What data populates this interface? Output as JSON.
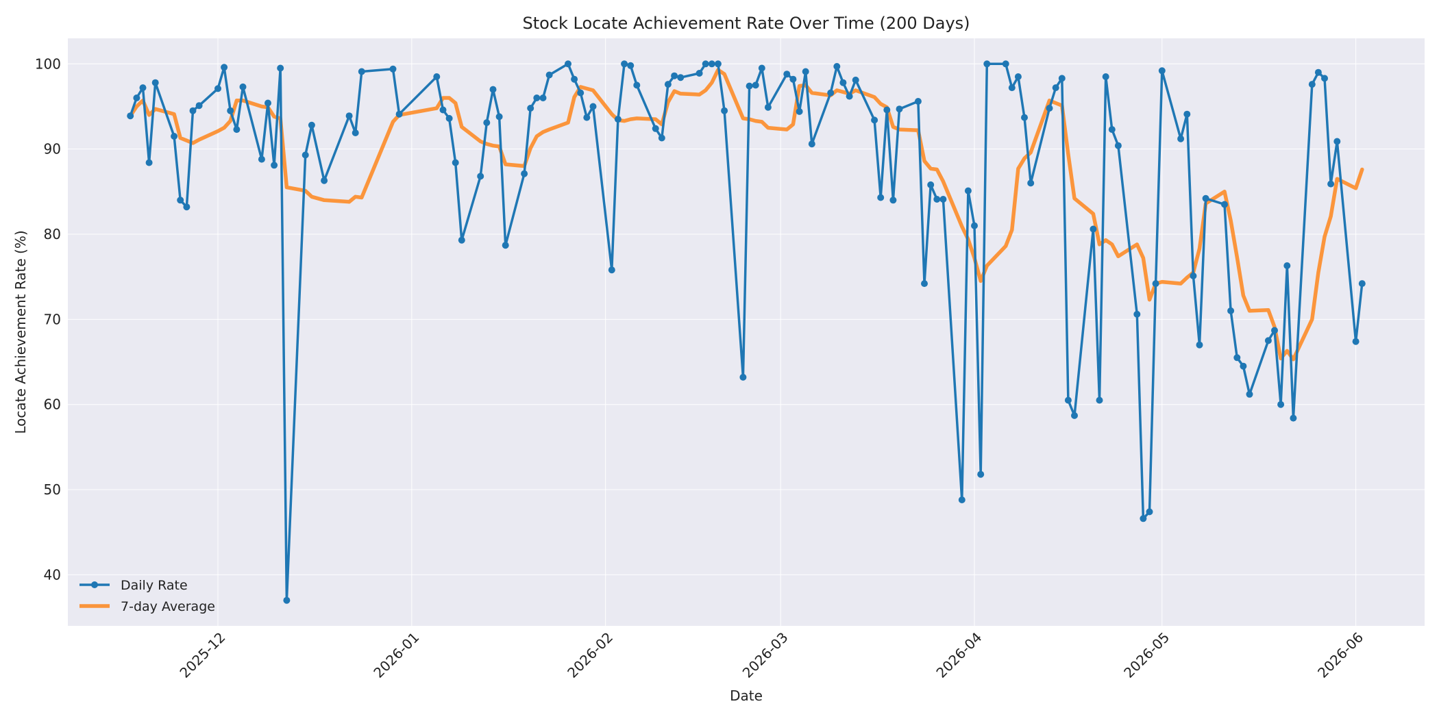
{
  "chart_data": {
    "type": "line",
    "title": "Stock Locate Achievement Rate Over Time (200 Days)",
    "xlabel": "Date",
    "ylabel": "Locate Achievement Rate (%)",
    "x_ticks": [
      "2025-12",
      "2026-01",
      "2026-02",
      "2026-03",
      "2026-04",
      "2026-05",
      "2026-06"
    ],
    "x_tick_dates": [
      "2025-12-01",
      "2026-01-01",
      "2026-02-01",
      "2026-03-01",
      "2026-04-01",
      "2026-05-01",
      "2026-06-01"
    ],
    "y_ticks": [
      40,
      50,
      60,
      70,
      80,
      90,
      100
    ],
    "xlim": [
      "2025-11-07",
      "2026-06-12"
    ],
    "ylim": [
      34,
      103
    ],
    "grid": true,
    "legend_position": "bottom-left",
    "series": [
      {
        "name": "Daily Rate",
        "color": "#1f77b4",
        "marker": "circle",
        "points": [
          [
            "2025-11-17",
            93.9
          ],
          [
            "2025-11-18",
            96.0
          ],
          [
            "2025-11-19",
            97.2
          ],
          [
            "2025-11-20",
            88.4
          ],
          [
            "2025-11-21",
            97.8
          ],
          [
            "2025-11-24",
            91.5
          ],
          [
            "2025-11-25",
            84.0
          ],
          [
            "2025-11-26",
            83.2
          ],
          [
            "2025-11-27",
            94.5
          ],
          [
            "2025-11-28",
            95.1
          ],
          [
            "2025-12-01",
            97.1
          ],
          [
            "2025-12-02",
            99.6
          ],
          [
            "2025-12-03",
            94.5
          ],
          [
            "2025-12-04",
            92.3
          ],
          [
            "2025-12-05",
            97.3
          ],
          [
            "2025-12-08",
            88.8
          ],
          [
            "2025-12-09",
            95.4
          ],
          [
            "2025-12-10",
            88.1
          ],
          [
            "2025-12-11",
            99.5
          ],
          [
            "2025-12-12",
            37.0
          ],
          [
            "2025-12-15",
            89.3
          ],
          [
            "2025-12-16",
            92.8
          ],
          [
            "2025-12-18",
            86.3
          ],
          [
            "2025-12-22",
            93.9
          ],
          [
            "2025-12-23",
            91.9
          ],
          [
            "2025-12-24",
            99.1
          ],
          [
            "2025-12-29",
            99.4
          ],
          [
            "2025-12-30",
            94.1
          ],
          [
            "2026-01-05",
            98.5
          ],
          [
            "2026-01-06",
            94.6
          ],
          [
            "2026-01-07",
            93.6
          ],
          [
            "2026-01-08",
            88.4
          ],
          [
            "2026-01-09",
            79.3
          ],
          [
            "2026-01-12",
            86.8
          ],
          [
            "2026-01-13",
            93.1
          ],
          [
            "2026-01-14",
            97.0
          ],
          [
            "2026-01-15",
            93.8
          ],
          [
            "2026-01-16",
            78.7
          ],
          [
            "2026-01-19",
            87.1
          ],
          [
            "2026-01-20",
            94.8
          ],
          [
            "2026-01-21",
            96.0
          ],
          [
            "2026-01-22",
            96.0
          ],
          [
            "2026-01-23",
            98.7
          ],
          [
            "2026-01-26",
            100.0
          ],
          [
            "2026-01-27",
            98.2
          ],
          [
            "2026-01-28",
            96.6
          ],
          [
            "2026-01-29",
            93.7
          ],
          [
            "2026-01-30",
            95.0
          ],
          [
            "2026-02-02",
            75.8
          ],
          [
            "2026-02-03",
            93.5
          ],
          [
            "2026-02-04",
            100.0
          ],
          [
            "2026-02-05",
            99.8
          ],
          [
            "2026-02-06",
            97.5
          ],
          [
            "2026-02-09",
            92.4
          ],
          [
            "2026-02-10",
            91.3
          ],
          [
            "2026-02-11",
            97.6
          ],
          [
            "2026-02-12",
            98.6
          ],
          [
            "2026-02-13",
            98.4
          ],
          [
            "2026-02-16",
            98.9
          ],
          [
            "2026-02-17",
            100.0
          ],
          [
            "2026-02-18",
            100.0
          ],
          [
            "2026-02-19",
            100.0
          ],
          [
            "2026-02-20",
            94.5
          ],
          [
            "2026-02-23",
            63.2
          ],
          [
            "2026-02-24",
            97.4
          ],
          [
            "2026-02-25",
            97.5
          ],
          [
            "2026-02-26",
            99.5
          ],
          [
            "2026-02-27",
            94.9
          ],
          [
            "2026-03-02",
            98.8
          ],
          [
            "2026-03-03",
            98.2
          ],
          [
            "2026-03-04",
            94.4
          ],
          [
            "2026-03-05",
            99.1
          ],
          [
            "2026-03-06",
            90.6
          ],
          [
            "2026-03-09",
            96.6
          ],
          [
            "2026-03-10",
            99.7
          ],
          [
            "2026-03-11",
            97.8
          ],
          [
            "2026-03-12",
            96.2
          ],
          [
            "2026-03-13",
            98.1
          ],
          [
            "2026-03-16",
            93.4
          ],
          [
            "2026-03-17",
            84.3
          ],
          [
            "2026-03-18",
            94.6
          ],
          [
            "2026-03-19",
            84.0
          ],
          [
            "2026-03-20",
            94.7
          ],
          [
            "2026-03-23",
            95.6
          ],
          [
            "2026-03-24",
            74.2
          ],
          [
            "2026-03-25",
            85.8
          ],
          [
            "2026-03-26",
            84.1
          ],
          [
            "2026-03-27",
            84.1
          ],
          [
            "2026-03-30",
            48.8
          ],
          [
            "2026-03-31",
            85.1
          ],
          [
            "2026-04-01",
            81.0
          ],
          [
            "2026-04-02",
            51.8
          ],
          [
            "2026-04-03",
            100.0
          ],
          [
            "2026-04-06",
            100.0
          ],
          [
            "2026-04-07",
            97.2
          ],
          [
            "2026-04-08",
            98.5
          ],
          [
            "2026-04-09",
            93.7
          ],
          [
            "2026-04-10",
            86.0
          ],
          [
            "2026-04-13",
            94.8
          ],
          [
            "2026-04-14",
            97.2
          ],
          [
            "2026-04-15",
            98.3
          ],
          [
            "2026-04-16",
            60.5
          ],
          [
            "2026-04-17",
            58.7
          ],
          [
            "2026-04-20",
            80.6
          ],
          [
            "2026-04-21",
            60.5
          ],
          [
            "2026-04-22",
            98.5
          ],
          [
            "2026-04-23",
            92.3
          ],
          [
            "2026-04-24",
            90.4
          ],
          [
            "2026-04-27",
            70.6
          ],
          [
            "2026-04-28",
            46.6
          ],
          [
            "2026-04-29",
            47.4
          ],
          [
            "2026-04-30",
            74.2
          ],
          [
            "2026-05-01",
            99.2
          ],
          [
            "2026-05-04",
            91.2
          ],
          [
            "2026-05-05",
            94.1
          ],
          [
            "2026-05-06",
            75.1
          ],
          [
            "2026-05-07",
            67.0
          ],
          [
            "2026-05-08",
            84.2
          ],
          [
            "2026-05-11",
            83.5
          ],
          [
            "2026-05-12",
            71.0
          ],
          [
            "2026-05-13",
            65.5
          ],
          [
            "2026-05-14",
            64.5
          ],
          [
            "2026-05-15",
            61.2
          ],
          [
            "2026-05-18",
            67.5
          ],
          [
            "2026-05-19",
            68.7
          ],
          [
            "2026-05-20",
            60.0
          ],
          [
            "2026-05-21",
            76.3
          ],
          [
            "2026-05-22",
            58.4
          ],
          [
            "2026-05-25",
            97.6
          ],
          [
            "2026-05-26",
            99.0
          ],
          [
            "2026-05-27",
            98.3
          ],
          [
            "2026-05-28",
            85.9
          ],
          [
            "2026-05-29",
            90.9
          ],
          [
            "2026-06-01",
            67.4
          ],
          [
            "2026-06-02",
            74.2
          ]
        ]
      },
      {
        "name": "7-day Average",
        "color": "#ff7f0e",
        "points": [
          [
            "2025-11-17",
            93.9
          ],
          [
            "2025-11-18",
            95.0
          ],
          [
            "2025-11-19",
            95.7
          ],
          [
            "2025-11-20",
            94.0
          ],
          [
            "2025-11-21",
            94.7
          ],
          [
            "2025-11-24",
            94.1
          ],
          [
            "2025-11-25",
            91.3
          ],
          [
            "2025-11-26",
            91.0
          ],
          [
            "2025-11-27",
            90.7
          ],
          [
            "2025-11-28",
            91.1
          ],
          [
            "2025-12-01",
            92.1
          ],
          [
            "2025-12-02",
            92.5
          ],
          [
            "2025-12-03",
            93.3
          ],
          [
            "2025-12-04",
            95.7
          ],
          [
            "2025-12-05",
            95.7
          ],
          [
            "2025-12-08",
            95.0
          ],
          [
            "2025-12-09",
            94.9
          ],
          [
            "2025-12-10",
            93.8
          ],
          [
            "2025-12-11",
            93.6
          ],
          [
            "2025-12-12",
            85.5
          ],
          [
            "2025-12-15",
            85.1
          ],
          [
            "2025-12-16",
            84.4
          ],
          [
            "2025-12-18",
            84.0
          ],
          [
            "2025-12-22",
            83.8
          ],
          [
            "2025-12-23",
            84.4
          ],
          [
            "2025-12-24",
            84.3
          ],
          [
            "2025-12-29",
            93.2
          ],
          [
            "2025-12-30",
            94.0
          ],
          [
            "2026-01-05",
            94.8
          ],
          [
            "2026-01-06",
            96.0
          ],
          [
            "2026-01-07",
            96.0
          ],
          [
            "2026-01-08",
            95.4
          ],
          [
            "2026-01-09",
            92.6
          ],
          [
            "2026-01-12",
            90.9
          ],
          [
            "2026-01-13",
            90.6
          ],
          [
            "2026-01-14",
            90.4
          ],
          [
            "2026-01-15",
            90.3
          ],
          [
            "2026-01-16",
            88.2
          ],
          [
            "2026-01-19",
            88.0
          ],
          [
            "2026-01-20",
            90.1
          ],
          [
            "2026-01-21",
            91.5
          ],
          [
            "2026-01-22",
            92.0
          ],
          [
            "2026-01-23",
            92.3
          ],
          [
            "2026-01-26",
            93.1
          ],
          [
            "2026-01-27",
            96.1
          ],
          [
            "2026-01-28",
            97.3
          ],
          [
            "2026-01-29",
            97.1
          ],
          [
            "2026-01-30",
            96.9
          ],
          [
            "2026-02-02",
            94.1
          ],
          [
            "2026-02-03",
            93.4
          ],
          [
            "2026-02-04",
            93.3
          ],
          [
            "2026-02-05",
            93.5
          ],
          [
            "2026-02-06",
            93.6
          ],
          [
            "2026-02-09",
            93.5
          ],
          [
            "2026-02-10",
            92.9
          ],
          [
            "2026-02-11",
            95.5
          ],
          [
            "2026-02-12",
            96.8
          ],
          [
            "2026-02-13",
            96.5
          ],
          [
            "2026-02-16",
            96.4
          ],
          [
            "2026-02-17",
            96.9
          ],
          [
            "2026-02-18",
            97.8
          ],
          [
            "2026-02-19",
            99.3
          ],
          [
            "2026-02-20",
            98.8
          ],
          [
            "2026-02-23",
            93.6
          ],
          [
            "2026-02-24",
            93.5
          ],
          [
            "2026-02-25",
            93.3
          ],
          [
            "2026-02-26",
            93.2
          ],
          [
            "2026-02-27",
            92.5
          ],
          [
            "2026-03-02",
            92.3
          ],
          [
            "2026-03-03",
            92.9
          ],
          [
            "2026-03-04",
            97.4
          ],
          [
            "2026-03-05",
            97.5
          ],
          [
            "2026-03-06",
            96.6
          ],
          [
            "2026-03-09",
            96.3
          ],
          [
            "2026-03-10",
            96.9
          ],
          [
            "2026-03-11",
            96.7
          ],
          [
            "2026-03-12",
            96.5
          ],
          [
            "2026-03-13",
            96.9
          ],
          [
            "2026-03-16",
            96.1
          ],
          [
            "2026-03-17",
            95.3
          ],
          [
            "2026-03-18",
            94.9
          ],
          [
            "2026-03-19",
            92.6
          ],
          [
            "2026-03-20",
            92.3
          ],
          [
            "2026-03-23",
            92.2
          ],
          [
            "2026-03-24",
            88.6
          ],
          [
            "2026-03-25",
            87.7
          ],
          [
            "2026-03-26",
            87.6
          ],
          [
            "2026-03-27",
            86.2
          ],
          [
            "2026-03-30",
            80.9
          ],
          [
            "2026-03-31",
            79.4
          ],
          [
            "2026-04-01",
            77.2
          ],
          [
            "2026-04-02",
            74.5
          ],
          [
            "2026-04-03",
            76.3
          ],
          [
            "2026-04-06",
            78.6
          ],
          [
            "2026-04-07",
            80.5
          ],
          [
            "2026-04-08",
            87.7
          ],
          [
            "2026-04-09",
            88.9
          ],
          [
            "2026-04-10",
            89.6
          ],
          [
            "2026-04-13",
            95.7
          ],
          [
            "2026-04-14",
            95.4
          ],
          [
            "2026-04-15",
            95.1
          ],
          [
            "2026-04-16",
            89.4
          ],
          [
            "2026-04-17",
            84.2
          ],
          [
            "2026-04-20",
            82.4
          ],
          [
            "2026-04-21",
            78.8
          ],
          [
            "2026-04-22",
            79.3
          ],
          [
            "2026-04-23",
            78.8
          ],
          [
            "2026-04-24",
            77.4
          ],
          [
            "2026-04-27",
            78.8
          ],
          [
            "2026-04-28",
            77.2
          ],
          [
            "2026-04-29",
            72.3
          ],
          [
            "2026-04-30",
            74.2
          ],
          [
            "2026-05-01",
            74.4
          ],
          [
            "2026-05-04",
            74.2
          ],
          [
            "2026-05-05",
            74.9
          ],
          [
            "2026-05-06",
            75.5
          ],
          [
            "2026-05-07",
            78.3
          ],
          [
            "2026-05-08",
            83.6
          ],
          [
            "2026-05-11",
            85.0
          ],
          [
            "2026-05-12",
            81.6
          ],
          [
            "2026-05-13",
            77.3
          ],
          [
            "2026-05-14",
            72.8
          ],
          [
            "2026-05-15",
            71.0
          ],
          [
            "2026-05-18",
            71.1
          ],
          [
            "2026-05-19",
            69.1
          ],
          [
            "2026-05-20",
            65.4
          ],
          [
            "2026-05-21",
            66.3
          ],
          [
            "2026-05-22",
            65.3
          ],
          [
            "2026-05-25",
            70.0
          ],
          [
            "2026-05-26",
            75.5
          ],
          [
            "2026-05-27",
            79.7
          ],
          [
            "2026-05-28",
            82.1
          ],
          [
            "2026-05-29",
            86.5
          ],
          [
            "2026-06-01",
            85.4
          ],
          [
            "2026-06-02",
            87.6
          ]
        ]
      }
    ]
  }
}
